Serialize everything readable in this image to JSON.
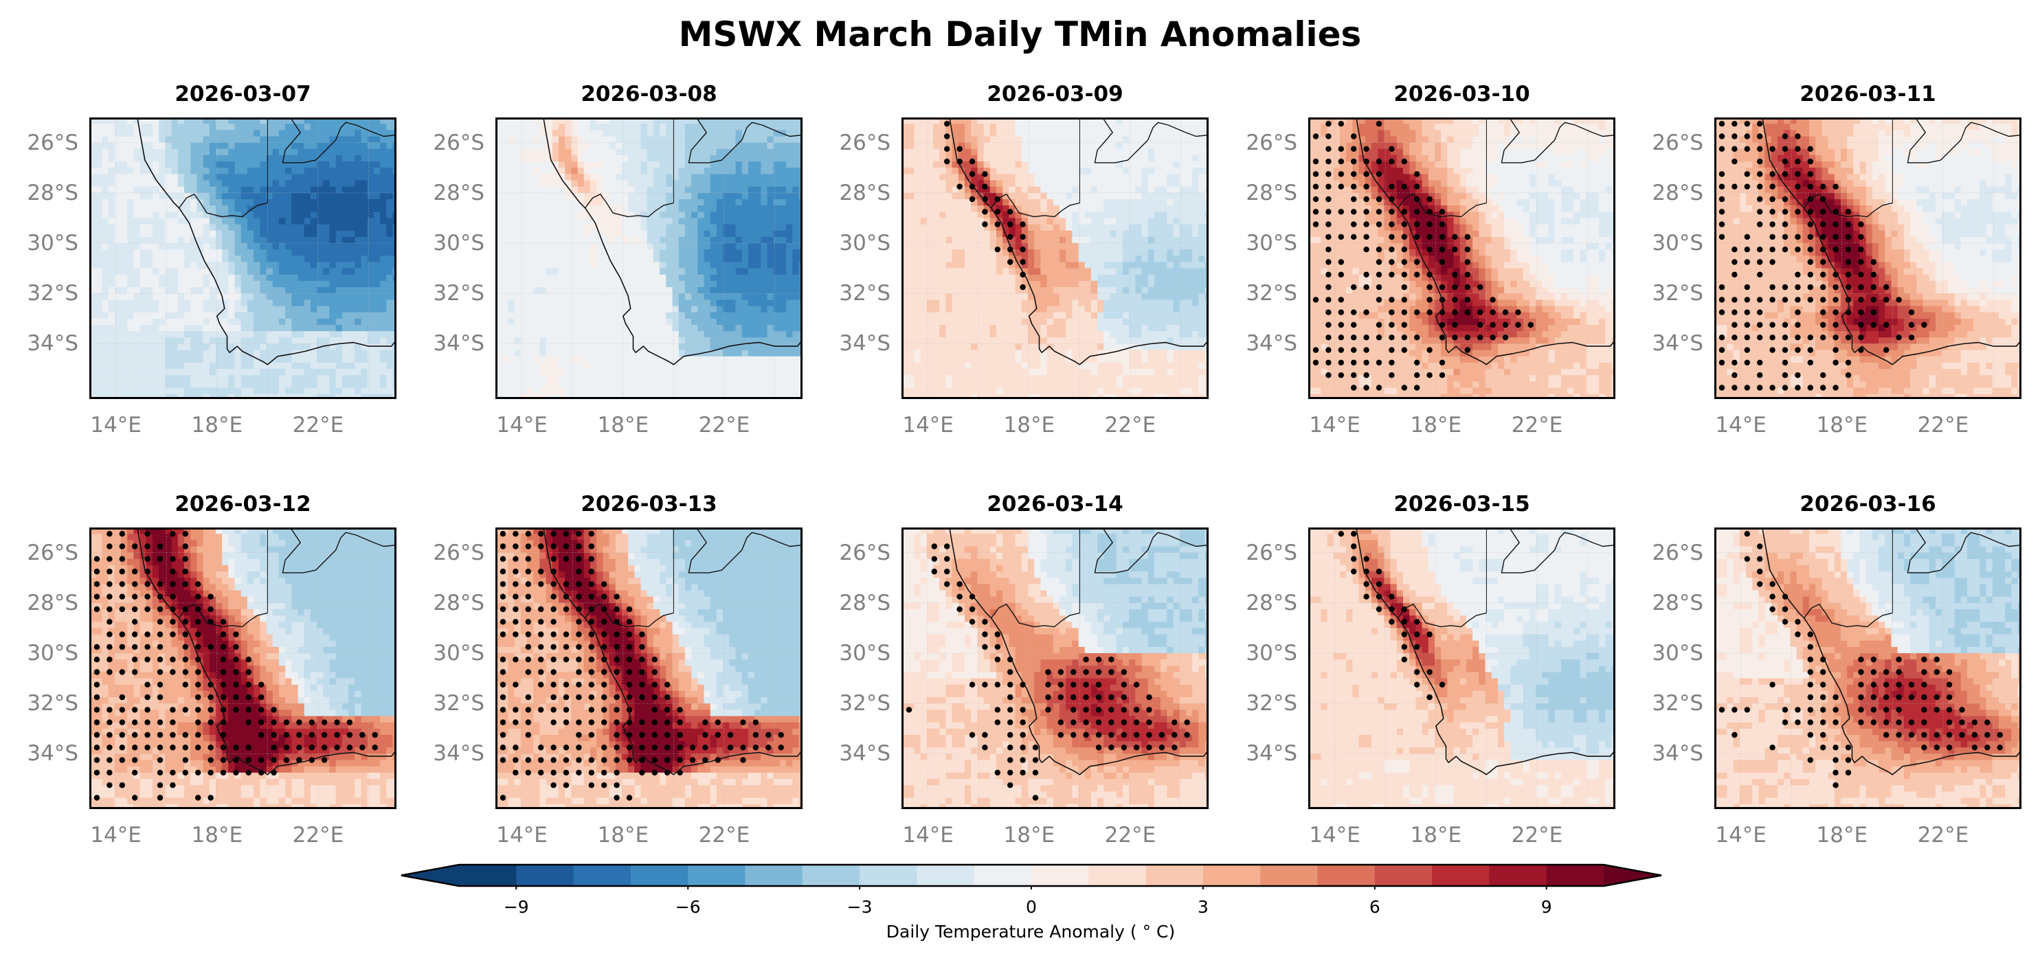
{
  "chart_data": {
    "type": "heatmap",
    "title": "MSWX March Daily TMin Anomalies",
    "panels": [
      {
        "title": "2026-03-07",
        "pattern": "cold_interior"
      },
      {
        "title": "2026-03-08",
        "pattern": "cold_east_warm_coast_north"
      },
      {
        "title": "2026-03-09",
        "pattern": "warm_west_coast_band"
      },
      {
        "title": "2026-03-10",
        "pattern": "strong_warm_west"
      },
      {
        "title": "2026-03-11",
        "pattern": "strong_warm_west"
      },
      {
        "title": "2026-03-12",
        "pattern": "warm_band_to_south_coast"
      },
      {
        "title": "2026-03-13",
        "pattern": "warm_band_to_south_coast"
      },
      {
        "title": "2026-03-14",
        "pattern": "warm_south_interior"
      },
      {
        "title": "2026-03-15",
        "pattern": "warm_west_coast_band"
      },
      {
        "title": "2026-03-16",
        "pattern": "warm_south_interior"
      }
    ],
    "lat_ticks": [
      "26°S",
      "28°S",
      "30°S",
      "32°S",
      "34°S"
    ],
    "lat_tick_values": [
      -26,
      -28,
      -30,
      -32,
      -34
    ],
    "lon_ticks": [
      "14°E",
      "18°E",
      "22°E"
    ],
    "lon_tick_values": [
      14,
      18,
      22
    ],
    "extent": {
      "lon": [
        12.95,
        25.1
      ],
      "lat": [
        -36.2,
        -25.0
      ]
    },
    "colorbar": {
      "label": "Daily Temperature Anomaly ( $^\\circ$C)",
      "label_display": "Daily Temperature Anomaly ( ° C)",
      "levels": [
        -10,
        -9,
        -8,
        -7,
        -6,
        -5,
        -4,
        -3,
        -2,
        -1,
        0,
        1,
        2,
        3,
        4,
        5,
        6,
        7,
        8,
        9,
        10
      ],
      "tick_values": [
        -9,
        -6,
        -3,
        0,
        3,
        6,
        9
      ],
      "tick_labels": [
        "−9",
        "−6",
        "−3",
        "0",
        "3",
        "6",
        "9"
      ],
      "extend": "both",
      "colors": [
        "#0e3f73",
        "#1d5a9a",
        "#2c71b1",
        "#3b88c0",
        "#559fcc",
        "#7fb7d7",
        "#a6cee3",
        "#c2ddec",
        "#dae8f1",
        "#edf1f4",
        "#f7eeea",
        "#fbe1d4",
        "#f9c8b0",
        "#f4b090",
        "#ea9474",
        "#dc725b",
        "#c9504a",
        "#b82b34",
        "#9e1629",
        "#7d0624"
      ],
      "under_color": "#08306b",
      "over_color": "#67001f"
    },
    "stipple": "significant anomalies"
  }
}
